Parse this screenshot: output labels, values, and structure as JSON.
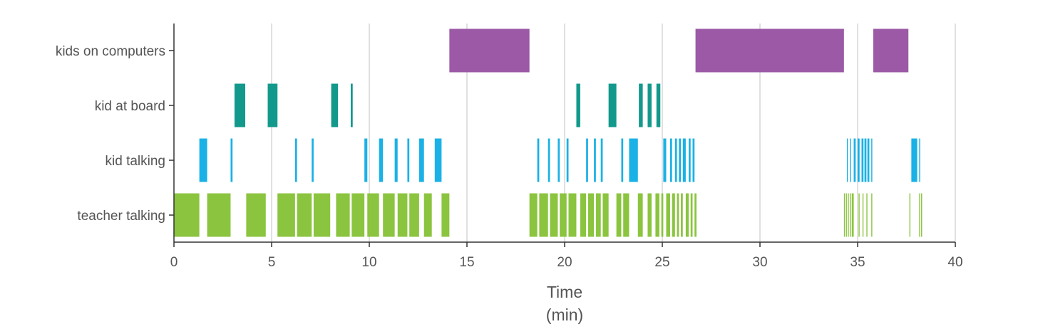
{
  "chart_data": {
    "type": "timeline",
    "title": "",
    "xlabel_line1": "Time",
    "xlabel_line2": "(min)",
    "xlim": [
      0,
      40
    ],
    "xticks": [
      0,
      5,
      10,
      15,
      20,
      25,
      30,
      35,
      40
    ],
    "tick_labels": [
      "0",
      "5",
      "10",
      "15",
      "20",
      "25",
      "30",
      "35",
      "40"
    ],
    "grid": "vertical",
    "categories": [
      "kids on computers",
      "kid at board",
      "kid talking",
      "teacher talking"
    ],
    "series": [
      {
        "category": "kids on computers",
        "color": "#9b59a6",
        "intervals": [
          [
            14.1,
            18.2
          ],
          [
            26.7,
            34.3
          ],
          [
            35.8,
            37.6
          ]
        ]
      },
      {
        "category": "kid at board",
        "color": "#13998c",
        "intervals": [
          [
            3.1,
            3.65
          ],
          [
            4.8,
            5.3
          ],
          [
            8.05,
            8.4
          ],
          [
            9.05,
            9.15
          ],
          [
            20.6,
            20.8
          ],
          [
            22.25,
            22.65
          ],
          [
            23.8,
            24.0
          ],
          [
            24.25,
            24.45
          ],
          [
            24.7,
            24.9
          ]
        ]
      },
      {
        "category": "kid talking",
        "color": "#1ab1e6",
        "intervals": [
          [
            1.3,
            1.7
          ],
          [
            2.9,
            3.0
          ],
          [
            6.2,
            6.3
          ],
          [
            7.05,
            7.15
          ],
          [
            9.75,
            9.9
          ],
          [
            10.5,
            10.7
          ],
          [
            11.3,
            11.45
          ],
          [
            11.95,
            12.05
          ],
          [
            12.55,
            12.8
          ],
          [
            13.35,
            13.7
          ],
          [
            18.6,
            18.7
          ],
          [
            19.15,
            19.25
          ],
          [
            19.65,
            19.75
          ],
          [
            20.1,
            20.2
          ],
          [
            21.1,
            21.2
          ],
          [
            21.5,
            21.6
          ],
          [
            21.85,
            21.95
          ],
          [
            22.9,
            23.0
          ],
          [
            23.3,
            23.75
          ],
          [
            25.05,
            25.2
          ],
          [
            25.4,
            25.5
          ],
          [
            25.65,
            25.75
          ],
          [
            25.85,
            25.95
          ],
          [
            26.05,
            26.2
          ],
          [
            26.35,
            26.45
          ],
          [
            26.55,
            26.65
          ],
          [
            34.45,
            34.5
          ],
          [
            34.6,
            34.65
          ],
          [
            34.8,
            34.9
          ],
          [
            35.0,
            35.1
          ],
          [
            35.2,
            35.3
          ],
          [
            35.35,
            35.45
          ],
          [
            35.5,
            35.6
          ],
          [
            35.7,
            35.75
          ],
          [
            37.75,
            38.05
          ],
          [
            38.15,
            38.2
          ]
        ]
      },
      {
        "category": "teacher talking",
        "color": "#8bc43f",
        "intervals": [
          [
            0.0,
            1.3
          ],
          [
            1.7,
            2.9
          ],
          [
            3.7,
            4.7
          ],
          [
            5.3,
            6.2
          ],
          [
            6.3,
            7.05
          ],
          [
            7.15,
            8.0
          ],
          [
            8.3,
            9.0
          ],
          [
            9.1,
            9.75
          ],
          [
            9.9,
            10.5
          ],
          [
            10.7,
            11.3
          ],
          [
            11.45,
            11.95
          ],
          [
            12.05,
            12.55
          ],
          [
            12.8,
            13.2
          ],
          [
            13.7,
            14.1
          ],
          [
            18.2,
            18.6
          ],
          [
            18.7,
            19.15
          ],
          [
            19.25,
            19.65
          ],
          [
            19.75,
            20.1
          ],
          [
            20.2,
            20.6
          ],
          [
            20.8,
            21.1
          ],
          [
            21.2,
            21.5
          ],
          [
            21.6,
            21.85
          ],
          [
            21.95,
            22.25
          ],
          [
            22.65,
            22.9
          ],
          [
            23.0,
            23.3
          ],
          [
            23.75,
            24.0
          ],
          [
            24.25,
            24.45
          ],
          [
            24.65,
            24.85
          ],
          [
            24.95,
            25.05
          ],
          [
            25.2,
            25.4
          ],
          [
            25.5,
            25.65
          ],
          [
            25.75,
            25.85
          ],
          [
            25.95,
            26.05
          ],
          [
            26.2,
            26.35
          ],
          [
            26.45,
            26.55
          ],
          [
            26.65,
            26.75
          ],
          [
            34.3,
            34.35
          ],
          [
            34.4,
            34.45
          ],
          [
            34.5,
            34.55
          ],
          [
            34.6,
            34.65
          ],
          [
            34.7,
            34.8
          ],
          [
            35.05,
            35.1
          ],
          [
            35.25,
            35.3
          ],
          [
            35.45,
            35.5
          ],
          [
            35.7,
            35.75
          ],
          [
            37.65,
            37.7
          ],
          [
            38.15,
            38.2
          ],
          [
            38.25,
            38.3
          ]
        ]
      }
    ]
  }
}
